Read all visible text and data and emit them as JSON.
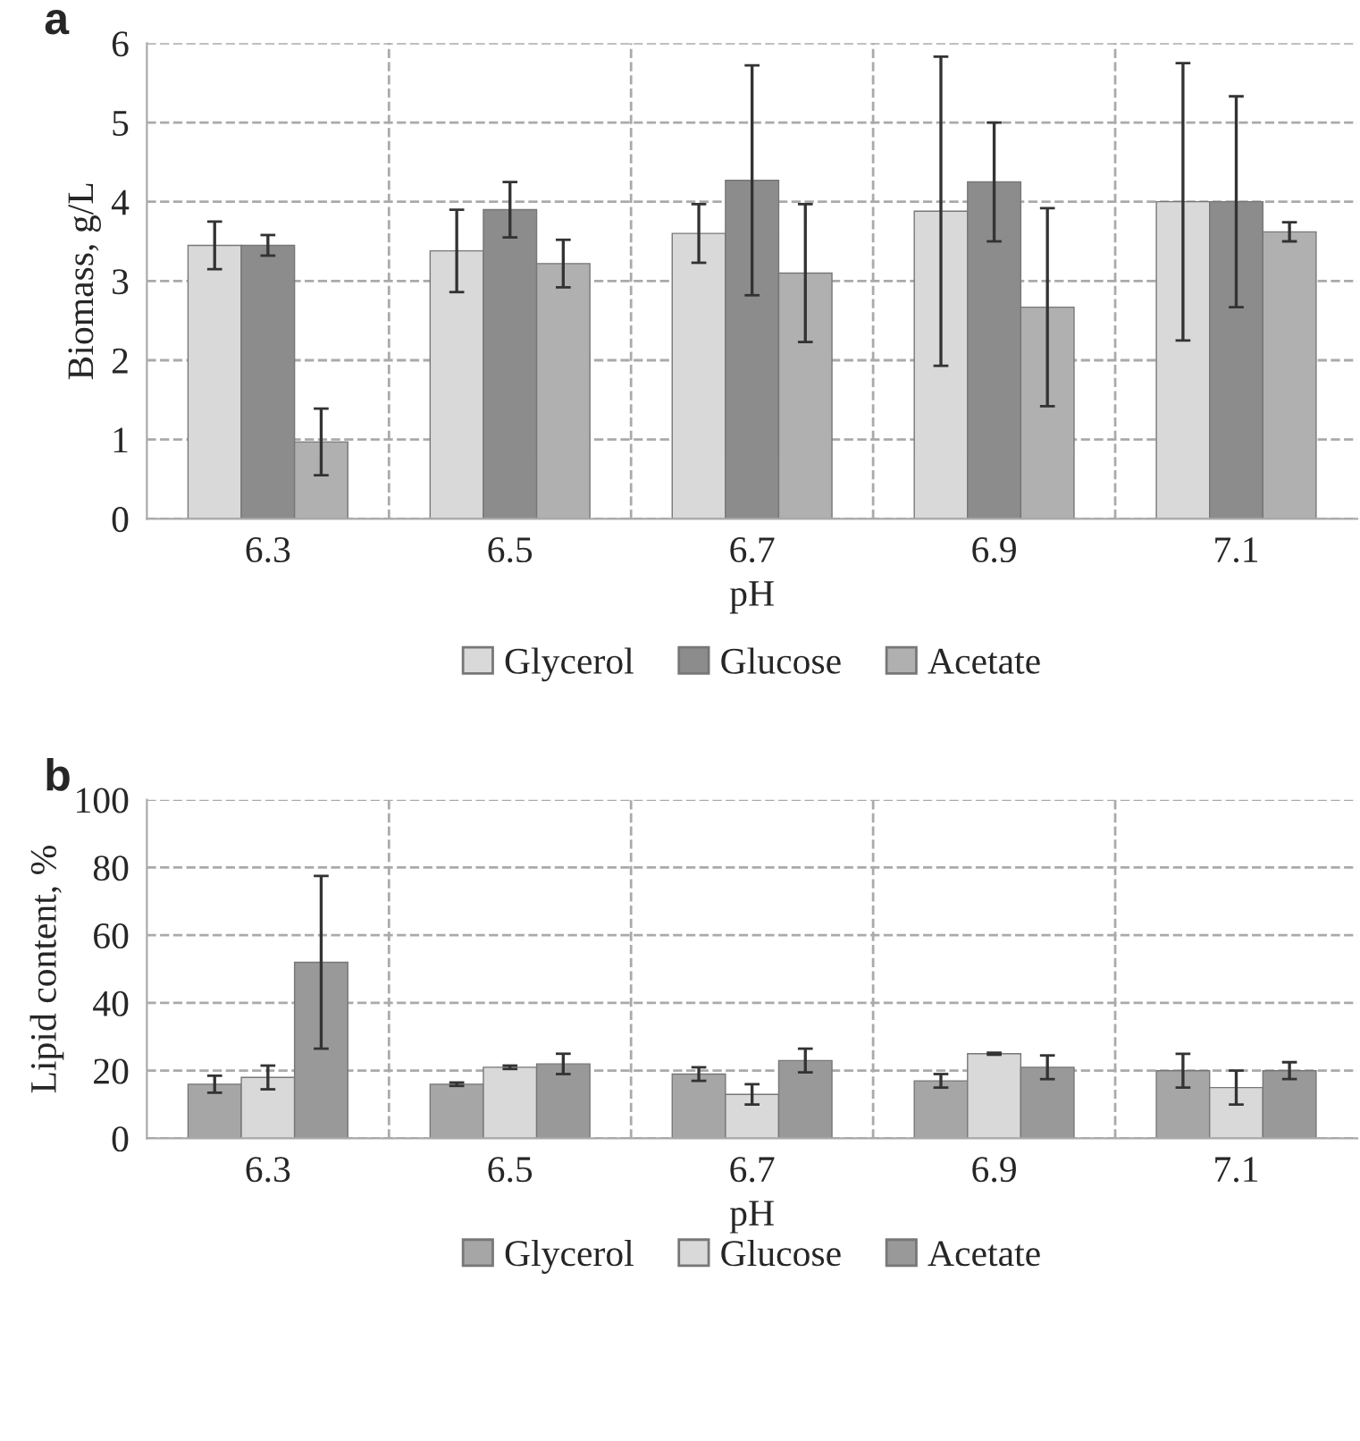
{
  "chart_data": [
    {
      "type": "bar",
      "xlabel": "pH",
      "ylabel": "Biomass, g/L",
      "categories": [
        "6.3",
        "6.5",
        "6.7",
        "6.9",
        "7.1"
      ],
      "ylim": [
        0,
        6
      ],
      "yticks": [
        0,
        1,
        2,
        3,
        4,
        5,
        6
      ],
      "grid": true,
      "legend": "bottom",
      "annotations": [
        "a"
      ],
      "series": [
        {
          "name": "Glycerol",
          "color": "#d9d9d9",
          "values": [
            3.45,
            3.38,
            3.6,
            3.88,
            4.0
          ],
          "errors": [
            0.3,
            0.52,
            0.37,
            1.95,
            1.75
          ]
        },
        {
          "name": "Glucose",
          "color": "#8c8c8c",
          "values": [
            3.45,
            3.9,
            4.27,
            4.25,
            4.0
          ],
          "errors": [
            0.13,
            0.35,
            1.45,
            0.75,
            1.33
          ]
        },
        {
          "name": "Acetate",
          "color": "#b0b0b0",
          "values": [
            0.97,
            3.22,
            3.1,
            2.67,
            3.62
          ],
          "errors": [
            0.42,
            0.3,
            0.87,
            1.25,
            0.12
          ]
        }
      ]
    },
    {
      "type": "bar",
      "xlabel": "pH",
      "ylabel": "Lipid content, %",
      "categories": [
        "6.3",
        "6.5",
        "6.7",
        "6.9",
        "7.1"
      ],
      "ylim": [
        0,
        100
      ],
      "yticks": [
        0,
        20,
        40,
        60,
        80,
        100
      ],
      "grid": true,
      "legend": "bottom",
      "annotations": [
        "b"
      ],
      "series": [
        {
          "name": "Glycerol",
          "color": "#a6a6a6",
          "values": [
            16,
            16,
            19,
            17,
            20
          ],
          "errors": [
            2.5,
            0.5,
            2,
            2,
            5
          ]
        },
        {
          "name": "Glucose",
          "color": "#d9d9d9",
          "values": [
            18,
            21,
            13,
            25,
            15
          ],
          "errors": [
            3.5,
            0.5,
            3,
            0.3,
            5
          ]
        },
        {
          "name": "Acetate",
          "color": "#999999",
          "values": [
            52,
            22,
            23,
            21,
            20
          ],
          "errors": [
            25.5,
            3,
            3.5,
            3.5,
            2.5
          ]
        }
      ]
    }
  ]
}
